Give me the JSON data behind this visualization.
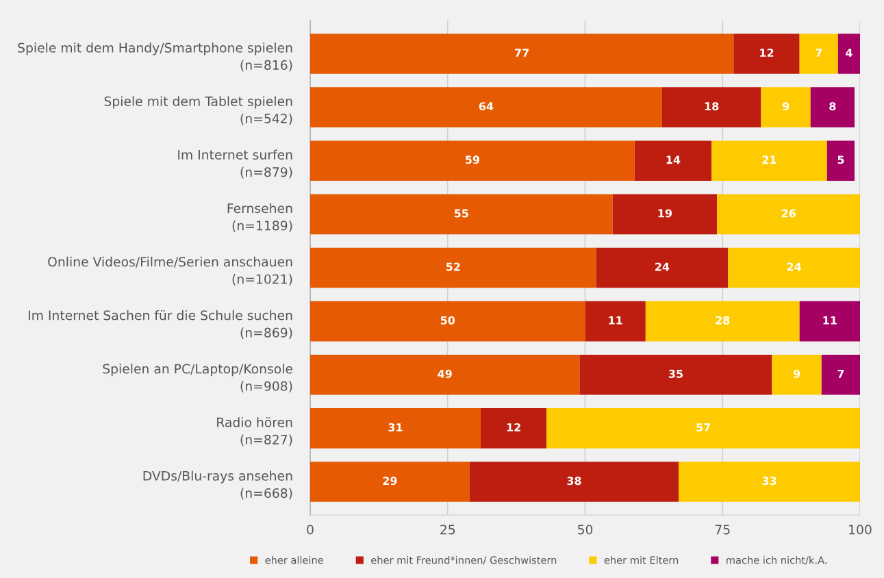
{
  "chart_data": {
    "type": "bar",
    "orientation": "horizontal",
    "stacked": true,
    "data_labels": true,
    "grid": "x",
    "legend": "bottom",
    "categories": [
      "Spiele mit dem Handy/Smartphone spielen\n(n=816)",
      "Spiele mit dem Tablet spielen\n(n=542)",
      "Im Internet surfen\n(n=879)",
      "Fernsehen\n(n=1189)",
      "Online Videos/Filme/Serien anschauen\n(n=1021)",
      "Im Internet Sachen für die Schule suchen\n(n=869)",
      "Spielen an PC/Laptop/Konsole\n(n=908)",
      "Radio hören\n(n=827)",
      "DVDs/Blu-rays ansehen\n(n=668)"
    ],
    "series": [
      {
        "name": "eher alleine",
        "color": "#e55a02",
        "values": [
          77,
          64,
          59,
          55,
          52,
          50,
          49,
          31,
          29
        ]
      },
      {
        "name": "eher mit Freund*innen/ Geschwistern",
        "color": "#bd1e10",
        "values": [
          12,
          18,
          14,
          19,
          24,
          11,
          35,
          12,
          38
        ]
      },
      {
        "name": "eher mit Eltern",
        "color": "#fdcb00",
        "values": [
          7,
          9,
          21,
          26,
          24,
          28,
          9,
          57,
          33
        ]
      },
      {
        "name": "mache ich nicht/k.A.",
        "color": "#a50064",
        "values": [
          4,
          8,
          5,
          null,
          null,
          11,
          7,
          null,
          null
        ]
      }
    ],
    "xlim": [
      0,
      100
    ],
    "xticks": [
      0,
      25,
      50,
      75,
      100
    ]
  }
}
